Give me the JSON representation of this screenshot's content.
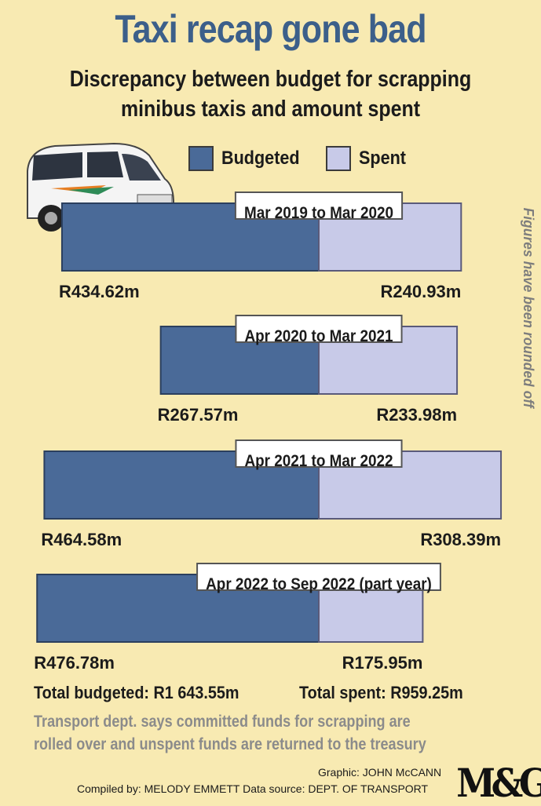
{
  "title": "Taxi recap gone bad",
  "subtitle_line1": "Discrepancy between budget for scrapping",
  "subtitle_line2": "minibus taxis and amount spent",
  "legend": {
    "budgeted": "Budgeted",
    "spent": "Spent"
  },
  "side_note": "Figures have been rounded off",
  "totals": {
    "budgeted": "Total budgeted: R1 643.55m",
    "spent": "Total spent: R959.25m"
  },
  "note": "Transport dept. says committed funds for scrapping are rolled over and unspent funds are returned to the treasury",
  "credits": {
    "graphic": "Graphic: JOHN McCANN",
    "compiled": "Compiled by: MELODY EMMETT  Data source: DEPT. OF TRANSPORT"
  },
  "logo": "M&G",
  "colors": {
    "budgeted": "#4a6a98",
    "spent": "#c8cae8",
    "background": "#f8eab2",
    "title": "#3c5f8a"
  },
  "chart_data": {
    "type": "bar",
    "orientation": "horizontal-diverging",
    "categories": [
      "Mar 2019 to Mar 2020",
      "Apr 2020 to Mar 2021",
      "Apr 2021 to Mar 2022",
      "Apr 2022 to Sep 2022 (part year)"
    ],
    "series": [
      {
        "name": "Budgeted",
        "values": [
          434.62,
          267.57,
          464.58,
          476.78
        ],
        "labels": [
          "R434.62m",
          "R267.57m",
          "R464.58m",
          "R476.78m"
        ]
      },
      {
        "name": "Spent",
        "values": [
          240.93,
          233.98,
          308.39,
          175.95
        ],
        "labels": [
          "R240.93m",
          "R233.98m",
          "R308.39m",
          "R175.95m"
        ]
      }
    ],
    "unit": "R million"
  }
}
